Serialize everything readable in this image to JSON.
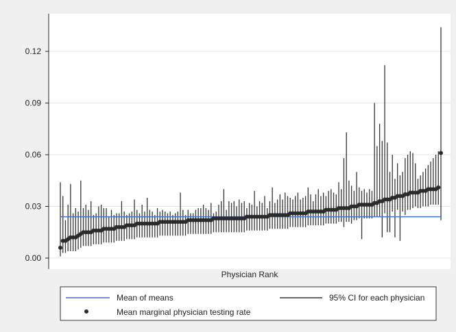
{
  "chart_data": {
    "type": "scatter",
    "title": "",
    "xlabel": "Physician Rank",
    "ylabel": "",
    "ylim": [
      0.0,
      0.135
    ],
    "yticks": [
      0.0,
      0.03,
      0.06,
      0.09,
      0.12
    ],
    "ytick_labels": [
      "0.00",
      "0.03",
      "0.06",
      "0.09",
      "0.12"
    ],
    "grid": "horizontal",
    "legend_position": "bottom",
    "mean_of_means": 0.024,
    "colors": {
      "mean_line": "#4472c4",
      "ci": "#333333",
      "point": "#2b2b2b",
      "grid": "#e6e6e6"
    },
    "series": [
      {
        "name": "Mean of means",
        "kind": "line"
      },
      {
        "name": "95% CI for each physician",
        "kind": "errorbar"
      },
      {
        "name": "Mean marginal physician testing rate",
        "kind": "point"
      }
    ],
    "x_ranks": [
      1,
      2,
      3,
      4,
      5,
      6,
      7,
      8,
      9,
      10,
      11,
      12,
      13,
      14,
      15,
      16,
      17,
      18,
      19,
      20,
      21,
      22,
      23,
      24,
      25,
      26,
      27,
      28,
      29,
      30,
      31,
      32,
      33,
      34,
      35,
      36,
      37,
      38,
      39,
      40,
      41,
      42,
      43,
      44,
      45,
      46,
      47,
      48,
      49,
      50,
      51,
      52,
      53,
      54,
      55,
      56,
      57,
      58,
      59,
      60,
      61,
      62,
      63,
      64,
      65,
      66,
      67,
      68,
      69,
      70,
      71,
      72,
      73,
      74,
      75,
      76,
      77,
      78,
      79,
      80,
      81,
      82,
      83,
      84,
      85,
      86,
      87,
      88,
      89,
      90,
      91,
      92,
      93,
      94,
      95,
      96,
      97,
      98,
      99,
      100,
      101,
      102,
      103,
      104,
      105,
      106,
      107,
      108,
      109,
      110,
      111,
      112,
      113,
      114,
      115,
      116,
      117,
      118,
      119,
      120,
      121,
      122,
      123,
      124,
      125,
      126,
      127,
      128,
      129,
      130,
      131,
      132,
      133,
      134,
      135,
      136,
      137,
      138,
      139,
      140,
      141,
      142,
      143,
      144,
      145,
      146,
      147,
      148,
      149,
      150
    ],
    "means": [
      0.006,
      0.01,
      0.01,
      0.011,
      0.012,
      0.012,
      0.012,
      0.013,
      0.014,
      0.015,
      0.015,
      0.015,
      0.015,
      0.016,
      0.016,
      0.016,
      0.016,
      0.017,
      0.017,
      0.017,
      0.017,
      0.017,
      0.018,
      0.018,
      0.018,
      0.018,
      0.019,
      0.019,
      0.019,
      0.019,
      0.02,
      0.02,
      0.02,
      0.02,
      0.02,
      0.02,
      0.02,
      0.02,
      0.02,
      0.021,
      0.021,
      0.021,
      0.021,
      0.021,
      0.021,
      0.021,
      0.021,
      0.021,
      0.021,
      0.021,
      0.022,
      0.022,
      0.022,
      0.022,
      0.022,
      0.022,
      0.022,
      0.022,
      0.022,
      0.022,
      0.023,
      0.023,
      0.023,
      0.023,
      0.023,
      0.023,
      0.023,
      0.023,
      0.023,
      0.023,
      0.023,
      0.023,
      0.023,
      0.024,
      0.024,
      0.024,
      0.024,
      0.024,
      0.024,
      0.024,
      0.024,
      0.024,
      0.025,
      0.025,
      0.025,
      0.025,
      0.025,
      0.025,
      0.025,
      0.025,
      0.026,
      0.026,
      0.026,
      0.026,
      0.026,
      0.026,
      0.026,
      0.027,
      0.027,
      0.027,
      0.027,
      0.027,
      0.027,
      0.027,
      0.028,
      0.028,
      0.028,
      0.028,
      0.028,
      0.029,
      0.029,
      0.029,
      0.029,
      0.029,
      0.03,
      0.03,
      0.03,
      0.031,
      0.031,
      0.031,
      0.031,
      0.031,
      0.031,
      0.032,
      0.032,
      0.033,
      0.033,
      0.034,
      0.034,
      0.034,
      0.035,
      0.035,
      0.036,
      0.036,
      0.036,
      0.037,
      0.037,
      0.038,
      0.038,
      0.038,
      0.038,
      0.039,
      0.039,
      0.039,
      0.04,
      0.04,
      0.04,
      0.04,
      0.041,
      0.061
    ],
    "ci_lower": [
      0.001,
      0.003,
      0.003,
      0.004,
      0.004,
      0.004,
      0.004,
      0.005,
      0.006,
      0.007,
      0.007,
      0.007,
      0.007,
      0.008,
      0.008,
      0.008,
      0.008,
      0.009,
      0.009,
      0.009,
      0.009,
      0.009,
      0.01,
      0.01,
      0.01,
      0.01,
      0.011,
      0.011,
      0.011,
      0.011,
      0.012,
      0.012,
      0.012,
      0.012,
      0.012,
      0.012,
      0.012,
      0.012,
      0.012,
      0.013,
      0.013,
      0.013,
      0.013,
      0.013,
      0.013,
      0.013,
      0.013,
      0.013,
      0.013,
      0.013,
      0.014,
      0.014,
      0.014,
      0.014,
      0.014,
      0.014,
      0.014,
      0.014,
      0.014,
      0.014,
      0.015,
      0.015,
      0.015,
      0.015,
      0.015,
      0.015,
      0.015,
      0.015,
      0.015,
      0.015,
      0.015,
      0.015,
      0.015,
      0.016,
      0.016,
      0.016,
      0.016,
      0.016,
      0.016,
      0.016,
      0.016,
      0.016,
      0.017,
      0.017,
      0.017,
      0.017,
      0.017,
      0.017,
      0.017,
      0.017,
      0.018,
      0.018,
      0.018,
      0.018,
      0.018,
      0.018,
      0.018,
      0.019,
      0.019,
      0.019,
      0.019,
      0.019,
      0.019,
      0.019,
      0.02,
      0.02,
      0.02,
      0.02,
      0.02,
      0.021,
      0.021,
      0.018,
      0.021,
      0.021,
      0.02,
      0.022,
      0.022,
      0.023,
      0.011,
      0.023,
      0.023,
      0.023,
      0.023,
      0.024,
      0.024,
      0.024,
      0.012,
      0.026,
      0.015,
      0.015,
      0.027,
      0.012,
      0.028,
      0.01,
      0.027,
      0.025,
      0.028,
      0.028,
      0.029,
      0.03,
      0.029,
      0.029,
      0.03,
      0.03,
      0.03,
      0.031,
      0.031,
      0.031,
      0.031,
      0.022,
      0.026
    ],
    "ci_upper": [
      0.044,
      0.036,
      0.022,
      0.031,
      0.043,
      0.026,
      0.029,
      0.027,
      0.045,
      0.029,
      0.031,
      0.028,
      0.033,
      0.025,
      0.026,
      0.03,
      0.031,
      0.029,
      0.029,
      0.024,
      0.028,
      0.025,
      0.026,
      0.026,
      0.033,
      0.027,
      0.025,
      0.026,
      0.027,
      0.034,
      0.028,
      0.026,
      0.031,
      0.027,
      0.035,
      0.028,
      0.027,
      0.025,
      0.029,
      0.027,
      0.028,
      0.027,
      0.026,
      0.027,
      0.025,
      0.026,
      0.027,
      0.038,
      0.028,
      0.025,
      0.028,
      0.026,
      0.026,
      0.028,
      0.029,
      0.029,
      0.031,
      0.029,
      0.028,
      0.032,
      0.026,
      0.027,
      0.031,
      0.033,
      0.04,
      0.028,
      0.033,
      0.032,
      0.033,
      0.03,
      0.034,
      0.032,
      0.033,
      0.029,
      0.032,
      0.031,
      0.039,
      0.03,
      0.033,
      0.032,
      0.036,
      0.029,
      0.033,
      0.041,
      0.032,
      0.034,
      0.037,
      0.034,
      0.038,
      0.036,
      0.035,
      0.034,
      0.036,
      0.038,
      0.034,
      0.035,
      0.036,
      0.041,
      0.037,
      0.033,
      0.037,
      0.04,
      0.036,
      0.038,
      0.036,
      0.039,
      0.04,
      0.038,
      0.037,
      0.044,
      0.04,
      0.058,
      0.073,
      0.045,
      0.042,
      0.039,
      0.05,
      0.041,
      0.039,
      0.04,
      0.038,
      0.04,
      0.039,
      0.09,
      0.065,
      0.078,
      0.068,
      0.112,
      0.067,
      0.05,
      0.06,
      0.046,
      0.055,
      0.048,
      0.05,
      0.058,
      0.06,
      0.062,
      0.061,
      0.055,
      0.046,
      0.048,
      0.05,
      0.052,
      0.054,
      0.056,
      0.058,
      0.06,
      0.062,
      0.134
    ]
  },
  "legend": {
    "mean_line_label": "Mean of means",
    "ci_label": "95% CI for each physician",
    "point_label": "Mean marginal physician testing rate"
  }
}
